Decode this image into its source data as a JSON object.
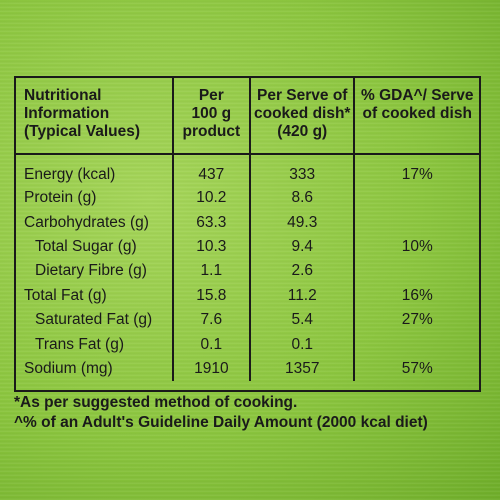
{
  "headers": {
    "nutrient": [
      "Nutritional",
      "Information",
      "(Typical Values)"
    ],
    "per100": [
      "Per",
      "100 g",
      "product"
    ],
    "perServe": [
      "Per Serve of",
      "cooked dish*",
      "(420 g)"
    ],
    "gda": [
      "% GDA^/ Serve",
      "of cooked dish"
    ]
  },
  "rows": [
    {
      "name": "Energy (kcal)",
      "per100": "437",
      "perServe": "333",
      "gda": "17%",
      "indent": false
    },
    {
      "name": "Protein (g)",
      "per100": "10.2",
      "perServe": "8.6",
      "gda": "",
      "indent": false
    },
    {
      "name": "Carbohydrates (g)",
      "per100": "63.3",
      "perServe": "49.3",
      "gda": "",
      "indent": false
    },
    {
      "name": "Total Sugar (g)",
      "per100": "10.3",
      "perServe": "9.4",
      "gda": "10%",
      "indent": true
    },
    {
      "name": "Dietary Fibre (g)",
      "per100": "1.1",
      "perServe": "2.6",
      "gda": "",
      "indent": true
    },
    {
      "name": "Total Fat (g)",
      "per100": "15.8",
      "perServe": "11.2",
      "gda": "16%",
      "indent": false
    },
    {
      "name": "Saturated Fat (g)",
      "per100": "7.6",
      "perServe": "5.4",
      "gda": "27%",
      "indent": true
    },
    {
      "name": "Trans Fat (g)",
      "per100": "0.1",
      "perServe": "0.1",
      "gda": "",
      "indent": true
    },
    {
      "name": "Sodium (mg)",
      "per100": "1910",
      "perServe": "1357",
      "gda": "57%",
      "indent": false
    }
  ],
  "footnotes": [
    "*As per suggested method of cooking.",
    "^% of an Adult's Guideline Daily Amount (2000 kcal diet)"
  ],
  "colors": {
    "background": "#8cc63f",
    "text": "#1a1a1a"
  }
}
